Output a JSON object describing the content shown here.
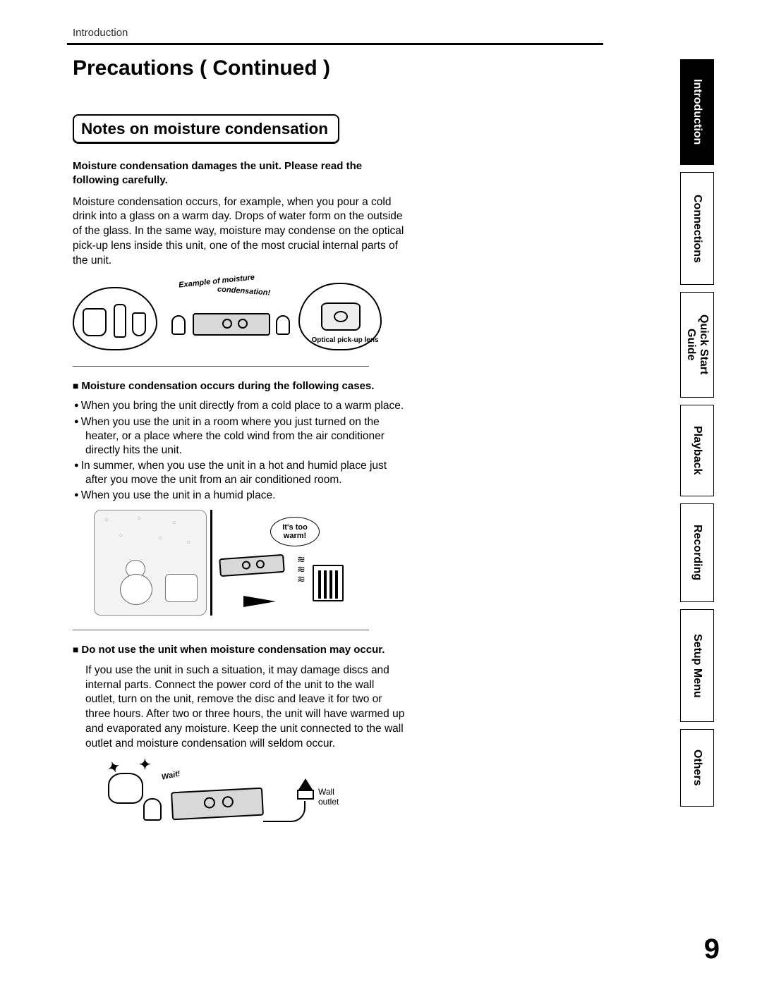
{
  "header": {
    "section_label": "Introduction"
  },
  "title": "Precautions ( Continued )",
  "section": {
    "heading": "Notes on moisture condensation",
    "intro_strong": "Moisture condensation damages the unit. Please read the following carefully.",
    "intro_body": "Moisture condensation occurs, for example, when you pour a cold drink into a glass on a warm day. Drops of water form on the outside of the glass. In the same way, moisture may condense on the optical pick-up lens inside this unit, one of the most crucial internal parts of the unit."
  },
  "illus1": {
    "caption_arc": "Example of moisture condensation!",
    "lens_label": "Optical pick-up lens"
  },
  "cases": {
    "heading": "Moisture condensation occurs during the following cases.",
    "items": [
      "When you bring the unit directly from a cold place to a warm place.",
      "When you use the unit in a room where you just turned on the heater, or a place where the cold wind from the air conditioner directly hits the unit.",
      "In summer, when you use the unit in a hot and humid place just after you move the unit from an air conditioned room.",
      "When you use the unit in a humid place."
    ]
  },
  "illus2": {
    "speech": "It's too warm!"
  },
  "donot": {
    "heading": "Do not use the unit when moisture condensation may occur.",
    "body": "If you use the unit in such a situation, it may damage discs and internal parts. Connect the power cord of the unit to the wall outlet, turn on the unit, remove the disc and leave it for two or three hours. After two or three hours, the unit will have warmed up and evaporated any moisture. Keep the unit connected to the wall outlet and moisture condensation will seldom occur."
  },
  "illus3": {
    "wait_label": "Wait!",
    "outlet_label": "Wall outlet"
  },
  "tabs": [
    {
      "label": "Introduction",
      "active": true
    },
    {
      "label": "Connections",
      "active": false
    },
    {
      "label": "Quick Start\nGuide",
      "active": false
    },
    {
      "label": "Playback",
      "active": false
    },
    {
      "label": "Recording",
      "active": false
    },
    {
      "label": "Setup Menu",
      "active": false
    },
    {
      "label": "Others",
      "active": false
    }
  ],
  "tab_heights": [
    150,
    160,
    150,
    130,
    140,
    160,
    110
  ],
  "page_number": "9",
  "colors": {
    "ink": "#000000",
    "paper": "#ffffff",
    "tab_active_bg": "#000000",
    "tab_active_fg": "#ffffff"
  }
}
